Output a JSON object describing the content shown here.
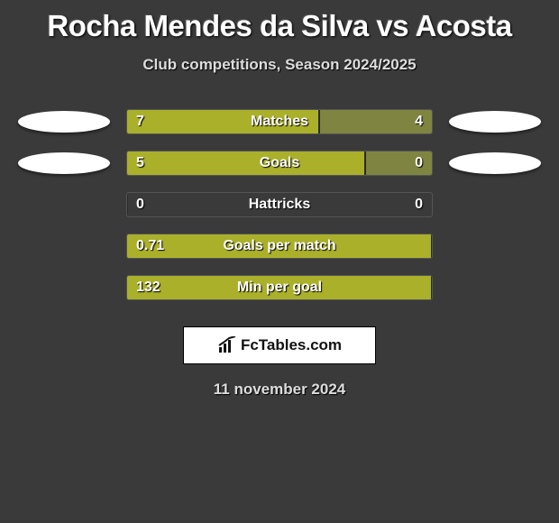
{
  "title": "Rocha Mendes da Silva vs Acosta",
  "subtitle": "Club competitions, Season 2024/2025",
  "date": "11 november 2024",
  "badge": {
    "text": "FcTables.com"
  },
  "colors": {
    "bar_fill": "#aab02a",
    "right_fill_muted": "#7f8540",
    "bg": "#3a3a3a"
  },
  "stats": [
    {
      "label": "Matches",
      "left_val": "7",
      "right_val": "4",
      "left_pct": 63,
      "right_pct": 37,
      "right_muted": true,
      "show_ellipses": true
    },
    {
      "label": "Goals",
      "left_val": "5",
      "right_val": "0",
      "left_pct": 78,
      "right_pct": 22,
      "right_muted": true,
      "show_ellipses": true
    },
    {
      "label": "Hattricks",
      "left_val": "0",
      "right_val": "0",
      "left_pct": 0,
      "right_pct": 0,
      "right_muted": false,
      "show_ellipses": false
    },
    {
      "label": "Goals per match",
      "left_val": "0.71",
      "right_val": "",
      "left_pct": 100,
      "right_pct": 0,
      "right_muted": false,
      "show_ellipses": false
    },
    {
      "label": "Min per goal",
      "left_val": "132",
      "right_val": "",
      "left_pct": 100,
      "right_pct": 0,
      "right_muted": false,
      "show_ellipses": false
    }
  ]
}
